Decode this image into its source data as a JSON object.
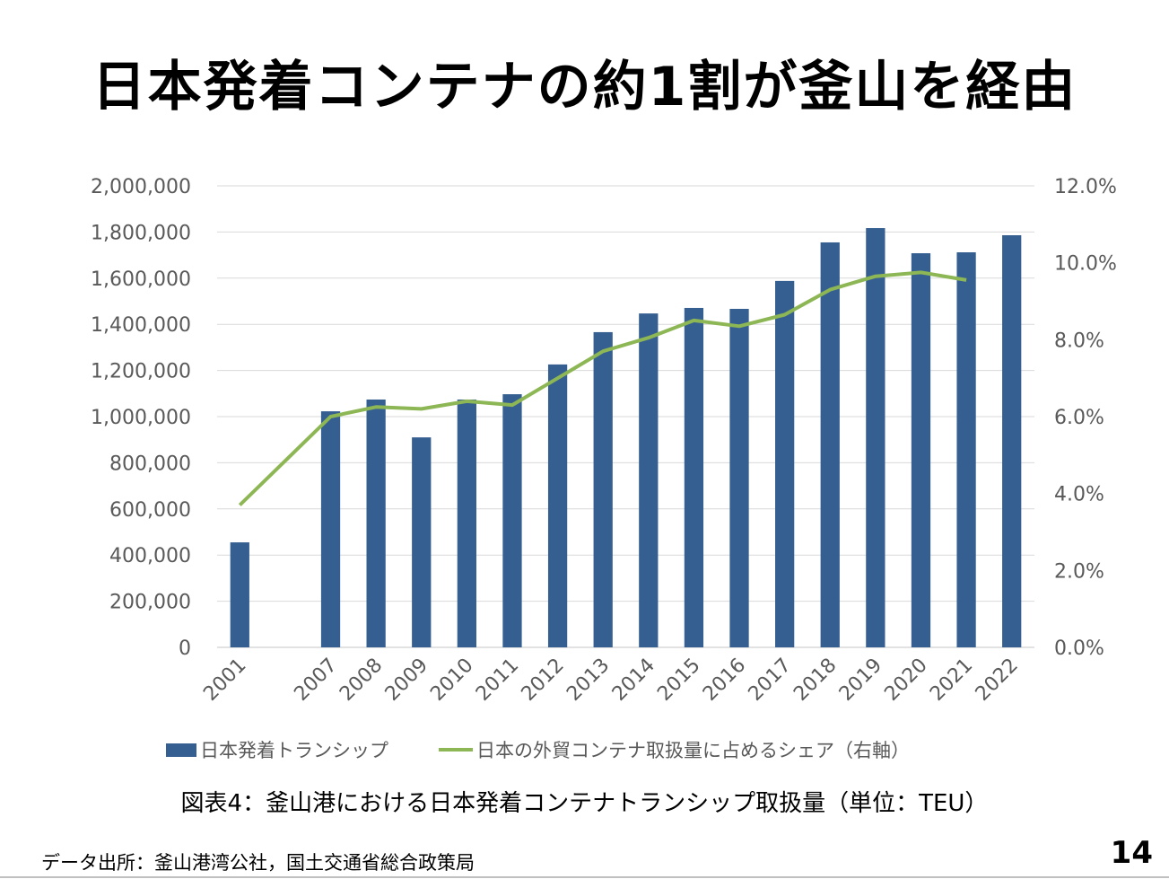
{
  "slide": {
    "title": "日本発着コンテナの約1割が釜山を経由",
    "caption": "図表4：釜山港における日本発着コンテナトランシップ取扱量（単位：TEU）",
    "source": "データ出所：釜山港湾公社，国土交通省総合政策局",
    "page_number": "14"
  },
  "colors": {
    "bar": "#365F91",
    "line": "#8DB654",
    "grid": "#D9D9D9",
    "tick_text": "#595959"
  },
  "chart_data": {
    "type": "bar",
    "title": "",
    "categories": [
      "2001",
      "2007",
      "2008",
      "2009",
      "2010",
      "2011",
      "2012",
      "2013",
      "2014",
      "2015",
      "2016",
      "2017",
      "2018",
      "2019",
      "2020",
      "2021",
      "2022"
    ],
    "gap_after_first": true,
    "series": [
      {
        "name": "日本発着トランシップ",
        "type": "bar",
        "axis": "left",
        "values": [
          455000,
          1023000,
          1074000,
          910000,
          1074000,
          1097000,
          1226000,
          1366000,
          1447000,
          1471000,
          1467000,
          1588000,
          1755000,
          1817000,
          1708000,
          1712000,
          1786000
        ]
      },
      {
        "name": "日本の外貿コンテナ取扱量に占めるシェア（右軸）",
        "type": "line",
        "axis": "right",
        "values": [
          3.7,
          6.0,
          6.25,
          6.2,
          6.4,
          6.3,
          7.0,
          7.7,
          8.05,
          8.5,
          8.35,
          8.65,
          9.3,
          9.65,
          9.75,
          9.55,
          null
        ]
      }
    ],
    "y_left": {
      "ylim": [
        0,
        2000000
      ],
      "ticks": [
        "0",
        "200,000",
        "400,000",
        "600,000",
        "800,000",
        "1,000,000",
        "1,200,000",
        "1,400,000",
        "1,600,000",
        "1,800,000",
        "2,000,000"
      ]
    },
    "y_right": {
      "ylim": [
        0,
        12
      ],
      "ticks": [
        "0.0%",
        "2.0%",
        "4.0%",
        "6.0%",
        "8.0%",
        "10.0%",
        "12.0%"
      ]
    },
    "xlabel": "",
    "ylabel": "",
    "grid": true,
    "legend": "bottom"
  }
}
